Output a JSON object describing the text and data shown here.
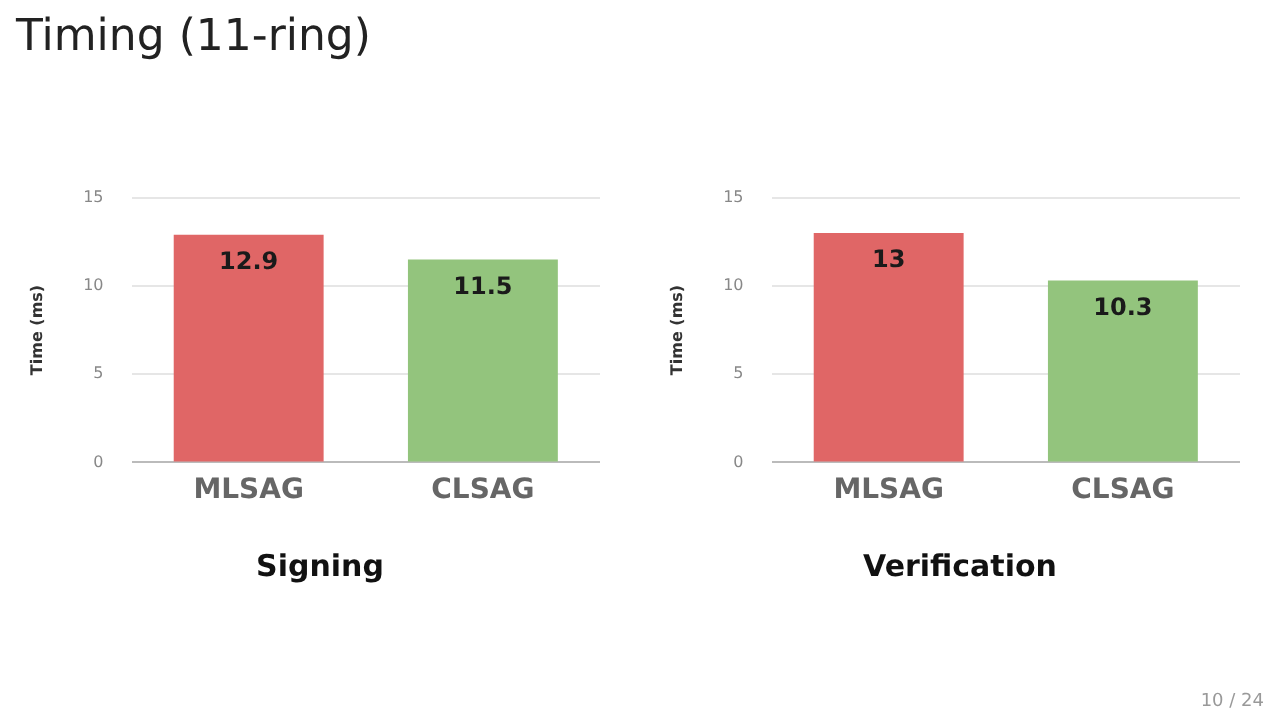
{
  "chart_data": [
    {
      "type": "bar",
      "title": "Signing",
      "ylabel": "Time (ms)",
      "categories": [
        "MLSAG",
        "CLSAG"
      ],
      "values": [
        12.9,
        11.5
      ],
      "colors": [
        "#e06666",
        "#93c47d"
      ],
      "ylim": [
        0,
        15
      ],
      "yticks": [
        0,
        5,
        10,
        15
      ],
      "grid": "y",
      "data_labels": true,
      "annotations": [
        "Timing (11-ring)"
      ]
    },
    {
      "type": "bar",
      "title": "Verification",
      "ylabel": "Time (ms)",
      "categories": [
        "MLSAG",
        "CLSAG"
      ],
      "values": [
        13,
        10.3
      ],
      "colors": [
        "#e06666",
        "#93c47d"
      ],
      "ylim": [
        0,
        15
      ],
      "yticks": [
        0,
        5,
        10,
        15
      ],
      "grid": "y",
      "data_labels": true,
      "annotations": [
        "10 / 24"
      ]
    }
  ]
}
